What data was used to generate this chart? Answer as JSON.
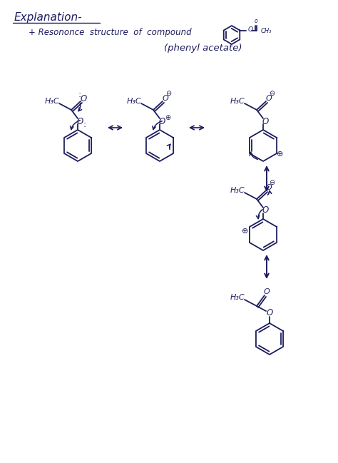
{
  "background_color": "#ffffff",
  "ink_color": "#1c1c5e",
  "figsize": [
    4.74,
    6.49
  ],
  "dpi": 100,
  "title": "Explanation-",
  "subtitle": "+ Resononce  structure  of  compound",
  "label": "(phenyl acetate)"
}
